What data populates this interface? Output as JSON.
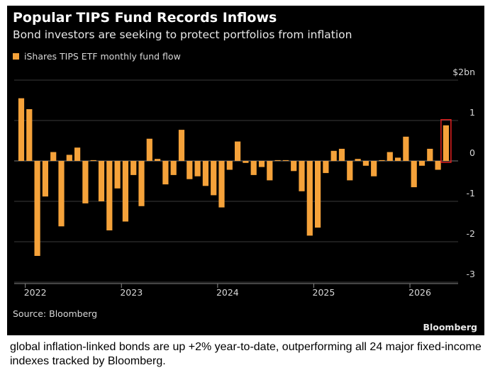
{
  "header": {
    "title": "Popular TIPS Fund Records Inflows",
    "subtitle": "Bond investors are seeking to protect portfolios from inflation"
  },
  "source": "Source: Bloomberg",
  "brand": "Bloomberg",
  "caption": "global inflation-linked bonds are up +2% year-to-date, outperforming all 24 major fixed-income indexes tracked by Bloomberg.",
  "colors": {
    "bar": "#f5a23a",
    "highlight": "#e02020",
    "grid": "#3a3a3a",
    "background": "#000000"
  },
  "chart_data": {
    "type": "bar",
    "legend": [
      "iShares TIPS ETF monthly fund flow"
    ],
    "legend_position": "top-left",
    "grid": true,
    "x_ticks": [
      "2022",
      "2023",
      "2024",
      "2025",
      "2026"
    ],
    "y_ticks": [
      "$2bn",
      "1",
      "0",
      "-1",
      "-2",
      "-3"
    ],
    "ylim": [
      -3,
      2
    ],
    "start_month": "2021-12",
    "series": [
      {
        "values": [
          1.55,
          1.28,
          -2.35,
          -0.88,
          0.22,
          -1.62,
          0.15,
          0.33,
          -1.05,
          0.02,
          -1.0,
          -1.72,
          -0.68,
          -1.5,
          -0.35,
          -1.12,
          0.55,
          0.05,
          -0.58,
          -0.35,
          0.77,
          -0.45,
          -0.38,
          -0.62,
          -0.85,
          -1.15,
          -0.22,
          0.48,
          -0.05,
          -0.35,
          -0.15,
          -0.48,
          0.02,
          0.02,
          -0.25,
          -0.75,
          -1.85,
          -1.65,
          -0.3,
          0.25,
          0.3,
          -0.48,
          0.05,
          -0.12,
          -0.38,
          0.02,
          0.22,
          0.08,
          0.6,
          -0.65,
          -0.12,
          0.3,
          -0.22,
          0.88
        ]
      }
    ],
    "highlight": "last bar"
  }
}
